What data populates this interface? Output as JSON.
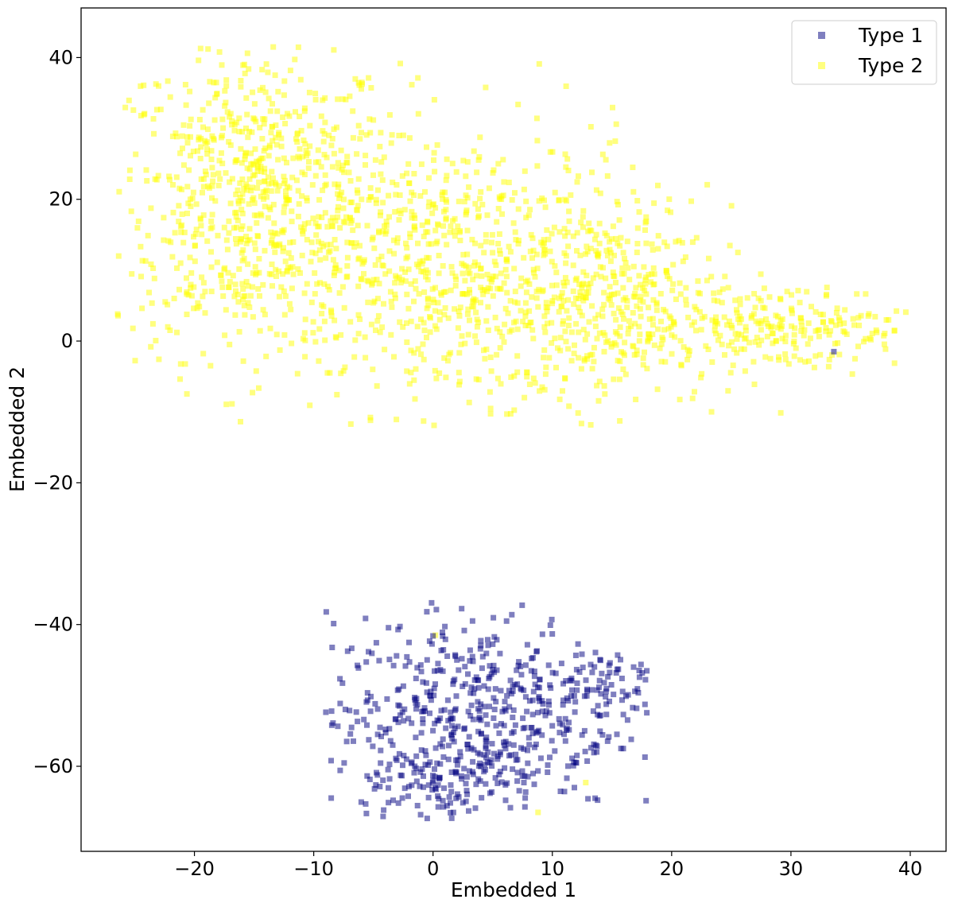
{
  "chart_data": {
    "type": "scatter",
    "title": "",
    "xlabel": "Embedded 1",
    "ylabel": "Embedded 2",
    "xlim": [
      -29.5,
      43
    ],
    "ylim": [
      -72,
      47
    ],
    "xticks": [
      -20,
      -10,
      0,
      10,
      20,
      30,
      40
    ],
    "yticks": [
      -60,
      -40,
      -20,
      0,
      20,
      40
    ],
    "xtick_labels": [
      "−20",
      "−10",
      "0",
      "10",
      "20",
      "30",
      "40"
    ],
    "ytick_labels": [
      "−60",
      "−40",
      "−20",
      "0",
      "20",
      "40"
    ],
    "grid": false,
    "legend": {
      "position": "top-right",
      "entries": [
        "Type 1",
        "Type 2"
      ]
    },
    "marker": "square",
    "alpha": 0.5,
    "series": [
      {
        "name": "Type 1",
        "color": "#00007f",
        "clusters": [
          {
            "cx": 3.5,
            "cy": -53,
            "sx": 6,
            "sy": 7,
            "n": 520
          },
          {
            "cx": 14.5,
            "cy": -48,
            "sx": 2.5,
            "sy": 2.5,
            "n": 60
          },
          {
            "cx": 0,
            "cy": -63,
            "sx": 3,
            "sy": 2.5,
            "n": 70
          }
        ],
        "range": {
          "x": [
            -9,
            18
          ],
          "y": [
            -67.5,
            -36.5
          ]
        },
        "outliers": [
          [
            33.6,
            -1.5
          ]
        ]
      },
      {
        "name": "Type 2",
        "color": "#ffff00",
        "clusters": [
          {
            "cx": -15,
            "cy": 20,
            "sx": 6,
            "sy": 11,
            "n": 700
          },
          {
            "cx": 2,
            "cy": 10,
            "sx": 8,
            "sy": 10,
            "n": 700
          },
          {
            "cx": 15,
            "cy": 5,
            "sx": 5,
            "sy": 7,
            "n": 350
          },
          {
            "cx": 30,
            "cy": 2,
            "sx": 5,
            "sy": 3,
            "n": 200
          }
        ],
        "range": {
          "x": [
            -26.5,
            40
          ],
          "y": [
            -12,
            42
          ]
        },
        "outliers": [
          [
            0.2,
            -41.5
          ],
          [
            12.8,
            -62.3
          ],
          [
            8.8,
            -66.5
          ]
        ]
      }
    ]
  }
}
